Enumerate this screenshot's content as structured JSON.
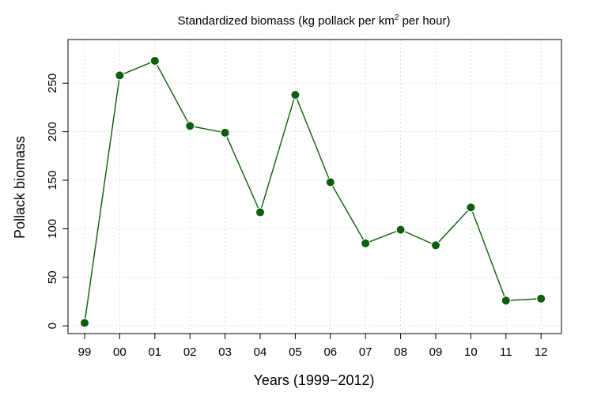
{
  "chart_data": {
    "type": "line",
    "title": "Standardized biomass (kg pollack per km",
    "title_superscript": "2",
    "title_suffix": " per hour)",
    "xlabel": "Years (1999−2012)",
    "ylabel": "Pollack biomass",
    "categories": [
      "99",
      "00",
      "01",
      "02",
      "03",
      "04",
      "05",
      "06",
      "07",
      "08",
      "09",
      "10",
      "11",
      "12"
    ],
    "values": [
      3,
      258,
      273,
      206,
      199,
      117,
      238,
      148,
      85,
      99,
      83,
      122,
      26,
      28
    ],
    "ylim": [
      -8,
      295
    ],
    "yticks": [
      0,
      50,
      100,
      150,
      200,
      250
    ],
    "grid": true,
    "color": "#0b5e0b",
    "marker_color": "#0b5e0b"
  }
}
